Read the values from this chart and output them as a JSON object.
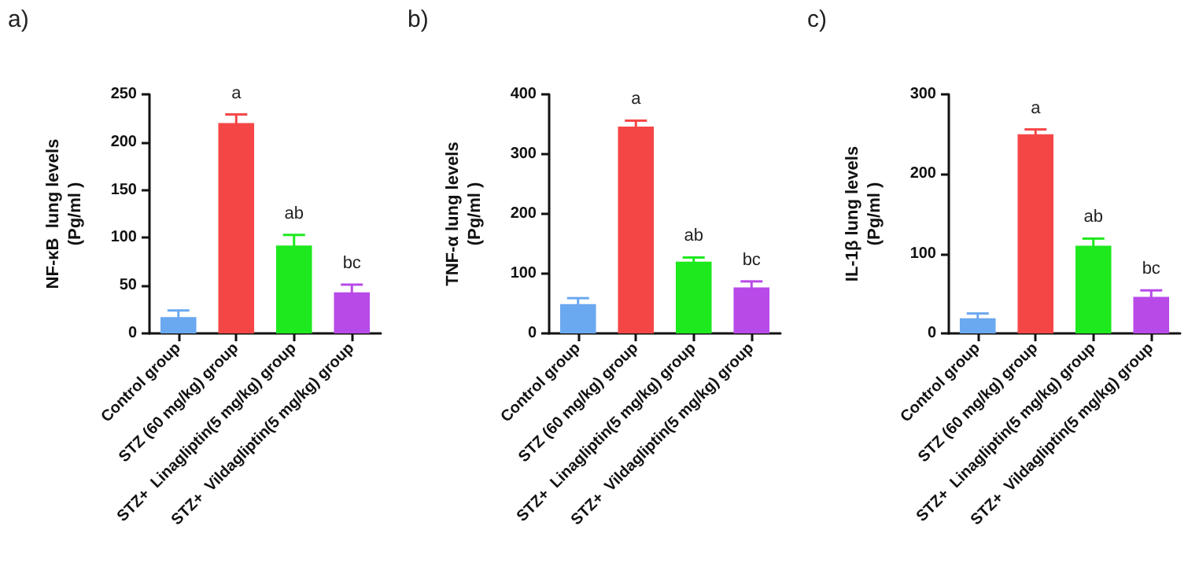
{
  "chart_data": [
    {
      "type": "bar",
      "title": "a)",
      "ylabel": "NF-κB  lung levels\n(Pg/ml )",
      "categories": [
        "Control group",
        "STZ (60 mg/kg) group",
        "STZ+  Linagliptin(5 mg/kg) group",
        "STZ+  Vildagliptin(5 mg/kg) group"
      ],
      "values": [
        17,
        220,
        92,
        43
      ],
      "errors": [
        7,
        9,
        11,
        8
      ],
      "value_labels": [
        null,
        "a",
        "ab",
        "bc"
      ],
      "colors": [
        "#6aa8f0",
        "#f54646",
        "#1ee81e",
        "#b84ae8"
      ],
      "ylim": [
        0,
        250
      ],
      "yticks": [
        0,
        50,
        100,
        150,
        200,
        250
      ],
      "grid": false
    },
    {
      "type": "bar",
      "title": "b)",
      "ylabel": "TNF-α lung levels\n(Pg/ml )",
      "categories": [
        "Control group",
        "STZ (60 mg/kg) group",
        "STZ+  Linagliptin(5 mg/kg) group",
        "STZ+  Vildagliptin(5 mg/kg) group"
      ],
      "values": [
        49,
        346,
        120,
        77
      ],
      "errors": [
        10,
        10,
        7,
        10
      ],
      "value_labels": [
        null,
        "a",
        "ab",
        "bc"
      ],
      "colors": [
        "#6aa8f0",
        "#f54646",
        "#1ee81e",
        "#b84ae8"
      ],
      "ylim": [
        0,
        400
      ],
      "yticks": [
        0,
        100,
        200,
        300,
        400
      ],
      "grid": false
    },
    {
      "type": "bar",
      "title": "c)",
      "ylabel": "IL-1β lung levels\n(Pg/ml )",
      "categories": [
        "Control group",
        "STZ (60 mg/kg) group",
        "STZ+  Linagliptin(5 mg/kg) group",
        "STZ+  Vildagliptin(5 mg/kg) group"
      ],
      "values": [
        19,
        250,
        110,
        46
      ],
      "errors": [
        6,
        6,
        9,
        8
      ],
      "value_labels": [
        null,
        "a",
        "ab",
        "bc"
      ],
      "colors": [
        "#6aa8f0",
        "#f54646",
        "#1ee81e",
        "#b84ae8"
      ],
      "ylim": [
        0,
        300
      ],
      "yticks": [
        0,
        100,
        200,
        300
      ],
      "grid": false
    }
  ]
}
